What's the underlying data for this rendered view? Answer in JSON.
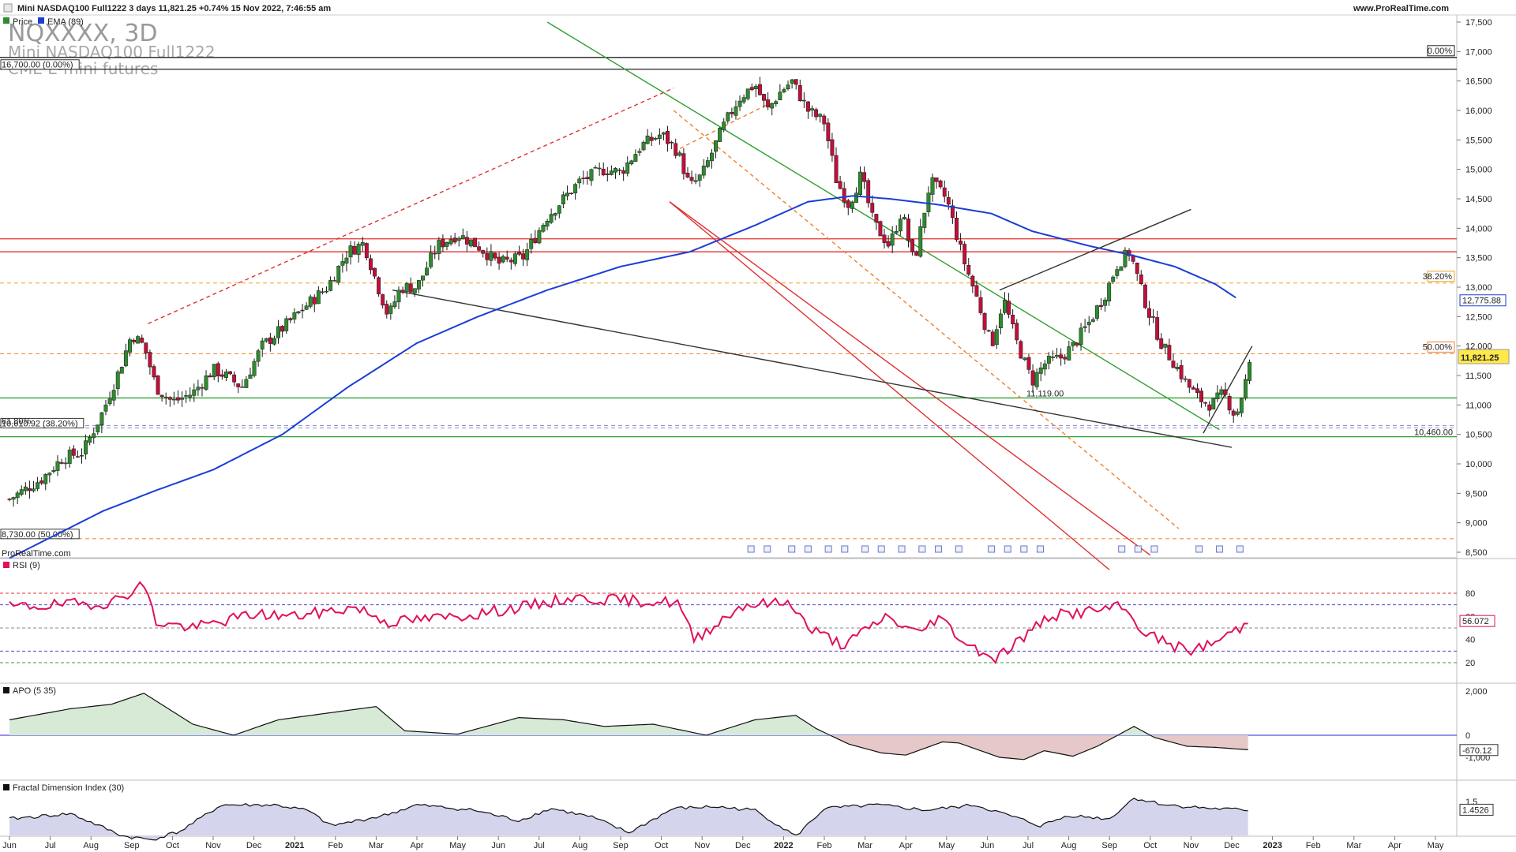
{
  "header": {
    "title_line": "Mini NASDAQ100 Full1222 3 days 11,821.25 +0.74% 15 Nov 2022, 7:46:55 am",
    "website": "www.ProRealTime.com"
  },
  "watermark": {
    "symbol": "NQXXXX, 3D",
    "name": "Mini NASDAQ100 Full1222",
    "exchange": "CME E-mini futures"
  },
  "legend": {
    "items": [
      {
        "label": "Price",
        "color": "#cc2222"
      },
      {
        "label": "EMA (89)",
        "color": "#1a3fd6"
      }
    ]
  },
  "footer_brand": "ProRealTime.com",
  "colors": {
    "up": "#2e8b2e",
    "down": "#c0103a",
    "ema": "#1a3fd6",
    "rsi": "#e0105a",
    "apo_pos_fill": "#d6ead6",
    "apo_neg_fill": "#e6c8c8",
    "fdi_fill": "#d4d4ec",
    "green_line": "#2fa02f",
    "red_line": "#e03030",
    "orange": "#f07f2a"
  },
  "chart_data": [
    {
      "type": "candlestick",
      "title": "Mini NASDAQ100 Full1222 3 days",
      "last_price": "11,821.25",
      "change": "+0.74%",
      "y_ticks": [
        "17,500",
        "17,000",
        "16,500",
        "16,000",
        "15,500",
        "15,000",
        "14,500",
        "14,000",
        "13,500",
        "13,000",
        "12,500",
        "12,000",
        "11,500",
        "11,000",
        "10,500",
        "10,000",
        "9,500",
        "9,000",
        "8,500"
      ],
      "ylim": [
        8400,
        17550
      ],
      "x_ticks": [
        "Jun",
        "Jul",
        "Aug",
        "Sep",
        "Oct",
        "Nov",
        "Dec",
        "2021",
        "Feb",
        "Mar",
        "Apr",
        "May",
        "Jun",
        "Jul",
        "Aug",
        "Sep",
        "Oct",
        "Nov",
        "Dec",
        "2022",
        "Feb",
        "Mar",
        "Apr",
        "May",
        "Jun",
        "Jul",
        "Aug",
        "Sep",
        "Oct",
        "Nov",
        "Dec",
        "2023",
        "Feb",
        "Mar",
        "Apr",
        "May"
      ],
      "x_range_months": [
        "2020-06",
        "2023-05"
      ],
      "close_path": [
        [
          0,
          9400
        ],
        [
          0.8,
          9750
        ],
        [
          1.3,
          10100
        ],
        [
          1.8,
          10200
        ],
        [
          2.3,
          10900
        ],
        [
          2.7,
          11600
        ],
        [
          3.0,
          12200
        ],
        [
          3.3,
          12000
        ],
        [
          3.6,
          11300
        ],
        [
          4.0,
          11050
        ],
        [
          4.5,
          11200
        ],
        [
          5.0,
          11600
        ],
        [
          5.3,
          11500
        ],
        [
          5.7,
          11300
        ],
        [
          6.2,
          12000
        ],
        [
          6.7,
          12300
        ],
        [
          7.3,
          12700
        ],
        [
          7.8,
          13000
        ],
        [
          8.3,
          13600
        ],
        [
          8.7,
          13750
        ],
        [
          9.0,
          13100
        ],
        [
          9.3,
          12500
        ],
        [
          9.6,
          13000
        ],
        [
          10.0,
          13000
        ],
        [
          10.5,
          13700
        ],
        [
          11.0,
          13900
        ],
        [
          11.5,
          13700
        ],
        [
          12.0,
          13400
        ],
        [
          12.6,
          13500
        ],
        [
          13.2,
          14200
        ],
        [
          14.0,
          14800
        ],
        [
          14.6,
          15000
        ],
        [
          15.0,
          14950
        ],
        [
          15.5,
          15400
        ],
        [
          16.0,
          15600
        ],
        [
          16.4,
          15300
        ],
        [
          16.7,
          14700
        ],
        [
          17.0,
          14900
        ],
        [
          17.5,
          15700
        ],
        [
          17.9,
          16200
        ],
        [
          18.3,
          16450
        ],
        [
          18.6,
          16000
        ],
        [
          18.9,
          16300
        ],
        [
          19.2,
          16500
        ],
        [
          19.6,
          16000
        ],
        [
          20.0,
          15800
        ],
        [
          20.3,
          14800
        ],
        [
          20.6,
          14400
        ],
        [
          20.9,
          14900
        ],
        [
          21.2,
          14100
        ],
        [
          21.6,
          13700
        ],
        [
          21.9,
          14300
        ],
        [
          22.2,
          13400
        ],
        [
          22.6,
          14800
        ],
        [
          23.0,
          14500
        ],
        [
          23.4,
          13500
        ],
        [
          23.8,
          12700
        ],
        [
          24.1,
          12000
        ],
        [
          24.4,
          12800
        ],
        [
          24.7,
          12100
        ],
        [
          25.1,
          11400
        ],
        [
          25.4,
          11700
        ],
        [
          25.8,
          11800
        ],
        [
          26.1,
          12000
        ],
        [
          26.5,
          12400
        ],
        [
          26.9,
          12900
        ],
        [
          27.2,
          13400
        ],
        [
          27.5,
          13600
        ],
        [
          27.8,
          12900
        ],
        [
          28.0,
          12500
        ],
        [
          28.3,
          12000
        ],
        [
          28.6,
          11700
        ],
        [
          28.9,
          11350
        ],
        [
          29.2,
          11100
        ],
        [
          29.5,
          11000
        ],
        [
          29.8,
          11200
        ],
        [
          30.1,
          10800
        ],
        [
          30.3,
          11300
        ],
        [
          30.5,
          11821
        ]
      ],
      "ema89_path": [
        [
          0,
          8400
        ],
        [
          2.3,
          9200
        ],
        [
          3.6,
          9550
        ],
        [
          5.0,
          9900
        ],
        [
          6.7,
          10500
        ],
        [
          8.3,
          11300
        ],
        [
          10.0,
          12050
        ],
        [
          11.5,
          12500
        ],
        [
          13.2,
          12950
        ],
        [
          15.0,
          13350
        ],
        [
          16.7,
          13600
        ],
        [
          18.3,
          14050
        ],
        [
          19.6,
          14450
        ],
        [
          20.7,
          14550
        ],
        [
          21.6,
          14500
        ],
        [
          22.8,
          14400
        ],
        [
          24.1,
          14250
        ],
        [
          25.1,
          13950
        ],
        [
          26.5,
          13700
        ],
        [
          27.5,
          13550
        ],
        [
          28.6,
          13350
        ],
        [
          29.6,
          13050
        ],
        [
          30.2,
          12776
        ]
      ],
      "horizontal_levels": [
        {
          "value": 16900,
          "label": "0.00%",
          "color": "#222"
        },
        {
          "value": 16700,
          "label": "16,700.00 (0.00%)",
          "color": "#222"
        },
        {
          "value": 13820,
          "label": "",
          "color": "#e03030"
        },
        {
          "value": 13600,
          "label": "",
          "color": "#e03030"
        },
        {
          "value": 13070,
          "label": "38.20%",
          "color": "#f0a020"
        },
        {
          "value": 11870,
          "label": "50.00%",
          "color": "#f07f2a"
        },
        {
          "value": 11119,
          "label": "11,119.00",
          "color": "#2fa02f"
        },
        {
          "value": 10610.92,
          "label": "10,610.92 (38.20%)",
          "color": "#9090d0"
        },
        {
          "value": 10650,
          "label": "61.80%",
          "color": "#9090d0"
        },
        {
          "value": 10460,
          "label": "10,460.00",
          "color": "#2fa02f"
        },
        {
          "value": 8730,
          "label": "8,730.00 (50.00%)",
          "color": "#f07f2a"
        }
      ],
      "right_labels": {
        "ema": "12,775.88",
        "price": "11,821.25"
      }
    },
    {
      "type": "line",
      "title": "RSI (9)",
      "y_ticks": [
        "80",
        "60",
        "40",
        "20"
      ],
      "ylim": [
        10,
        95
      ],
      "levels": [
        80,
        70,
        50,
        30,
        20
      ],
      "last_value": "56.072"
    },
    {
      "type": "area",
      "title": "APO (5 35)",
      "y_ticks": [
        "2,000",
        "0",
        "-1,000"
      ],
      "ylim": [
        -1400,
        2300
      ],
      "last_value": "-670.12"
    },
    {
      "type": "area",
      "title": "Fractal Dimension Index (30)",
      "y_ticks": [
        "1.5"
      ],
      "ylim": [
        1.2,
        1.75
      ],
      "last_value": "1.4526"
    }
  ]
}
